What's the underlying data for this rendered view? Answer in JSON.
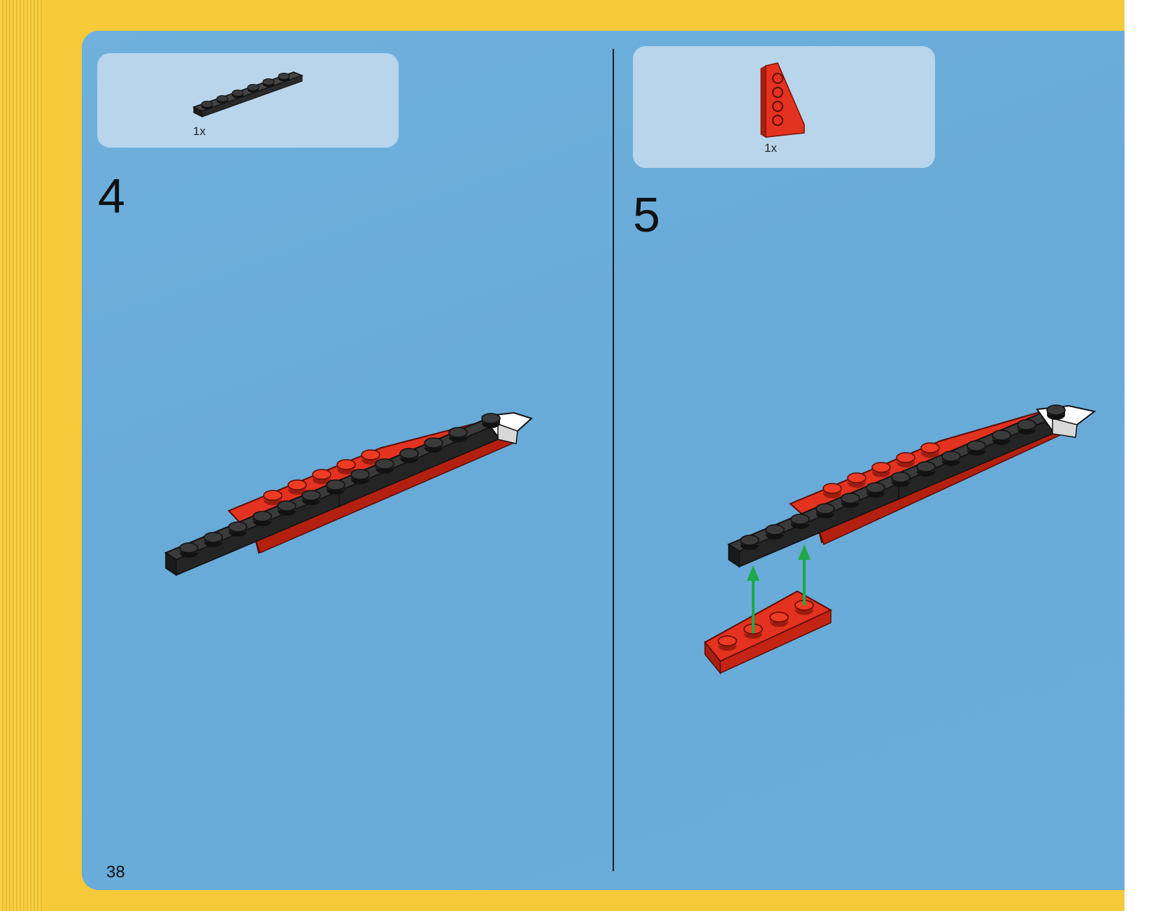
{
  "page_number": "38",
  "steps": [
    {
      "number": "4",
      "part_quantity": "1x",
      "part_icon": "black-plate-1x6-icon",
      "model_icon": "fuselage-assembly-icon"
    },
    {
      "number": "5",
      "part_quantity": "1x",
      "part_icon": "red-wing-plate-icon",
      "model_icon": "fuselage-with-wing-icon",
      "arrow_icon": "green-up-arrow-icon"
    }
  ],
  "colors": {
    "page_yellow": "#f5c93a",
    "sheet_blue": "#6aacda",
    "brick_black": "#2a2a2a",
    "brick_red": "#e3321f",
    "arrow_green": "#1fa84a"
  }
}
